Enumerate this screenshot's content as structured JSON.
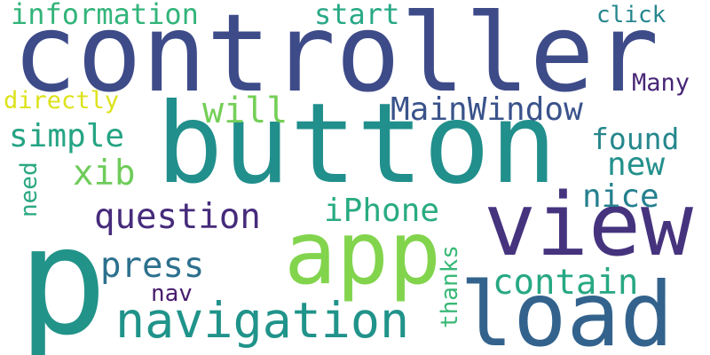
{
  "words": [
    {
      "id": "controller",
      "text": "controller",
      "color": "#3e4b89"
    },
    {
      "id": "button",
      "text": "button",
      "color": "#218f8c"
    },
    {
      "id": "p",
      "text": "p",
      "color": "#229389"
    },
    {
      "id": "view",
      "text": "view",
      "color": "#46337e"
    },
    {
      "id": "app",
      "text": "app",
      "color": "#82d44d"
    },
    {
      "id": "load",
      "text": "load",
      "color": "#33638d"
    },
    {
      "id": "navigation",
      "text": "navigation",
      "color": "#20938a"
    },
    {
      "id": "information",
      "text": "information",
      "color": "#33b47a"
    },
    {
      "id": "start",
      "text": "start",
      "color": "#29a986"
    },
    {
      "id": "click",
      "text": "click",
      "color": "#26868e"
    },
    {
      "id": "MainWindow",
      "text": "MainWindow",
      "color": "#3a538b"
    },
    {
      "id": "Many",
      "text": "Many",
      "color": "#482576"
    },
    {
      "id": "directly",
      "text": "directly",
      "color": "#dde219"
    },
    {
      "id": "will",
      "text": "will",
      "color": "#74cf57"
    },
    {
      "id": "simple",
      "text": "simple",
      "color": "#25a484"
    },
    {
      "id": "found",
      "text": "found",
      "color": "#26878d"
    },
    {
      "id": "new",
      "text": "new",
      "color": "#23908c"
    },
    {
      "id": "xib",
      "text": "xib",
      "color": "#6ecc5a"
    },
    {
      "id": "nice",
      "text": "nice",
      "color": "#25808e"
    },
    {
      "id": "question",
      "text": "question",
      "color": "#462b7b"
    },
    {
      "id": "iPhone",
      "text": "iPhone",
      "color": "#29ab82"
    },
    {
      "id": "press",
      "text": "press",
      "color": "#2c708e"
    },
    {
      "id": "contain",
      "text": "contain",
      "color": "#27a883"
    },
    {
      "id": "nav",
      "text": "nav",
      "color": "#471b6e"
    },
    {
      "id": "need",
      "text": "need",
      "color": "#2ba781"
    },
    {
      "id": "thanks",
      "text": "thanks",
      "color": "#38b876"
    }
  ]
}
